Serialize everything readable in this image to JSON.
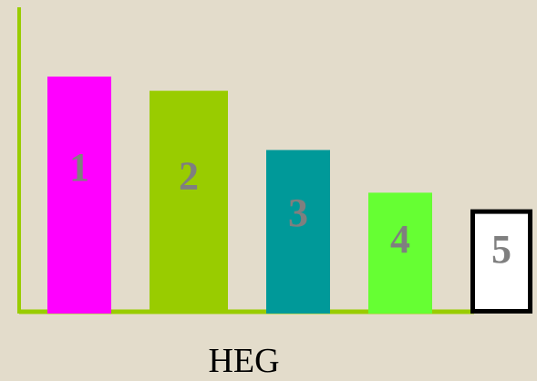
{
  "chart_data": {
    "type": "bar",
    "title": "",
    "xlabel": "HEG",
    "ylabel": "",
    "categories": [
      "1",
      "2",
      "3",
      "4",
      "5"
    ],
    "values": [
      100,
      94,
      69,
      51,
      44
    ],
    "ylim": [
      0,
      120
    ],
    "grid": false,
    "legend": "none",
    "bar_colors": [
      "#ff00ff",
      "#99cc00",
      "#009999",
      "#66ff33",
      "#ffffff"
    ],
    "bar_outlines": [
      "none",
      "none",
      "none",
      "none",
      "#000000"
    ],
    "axis_color": "#99cc00",
    "label_color": "#7f7f7f"
  }
}
